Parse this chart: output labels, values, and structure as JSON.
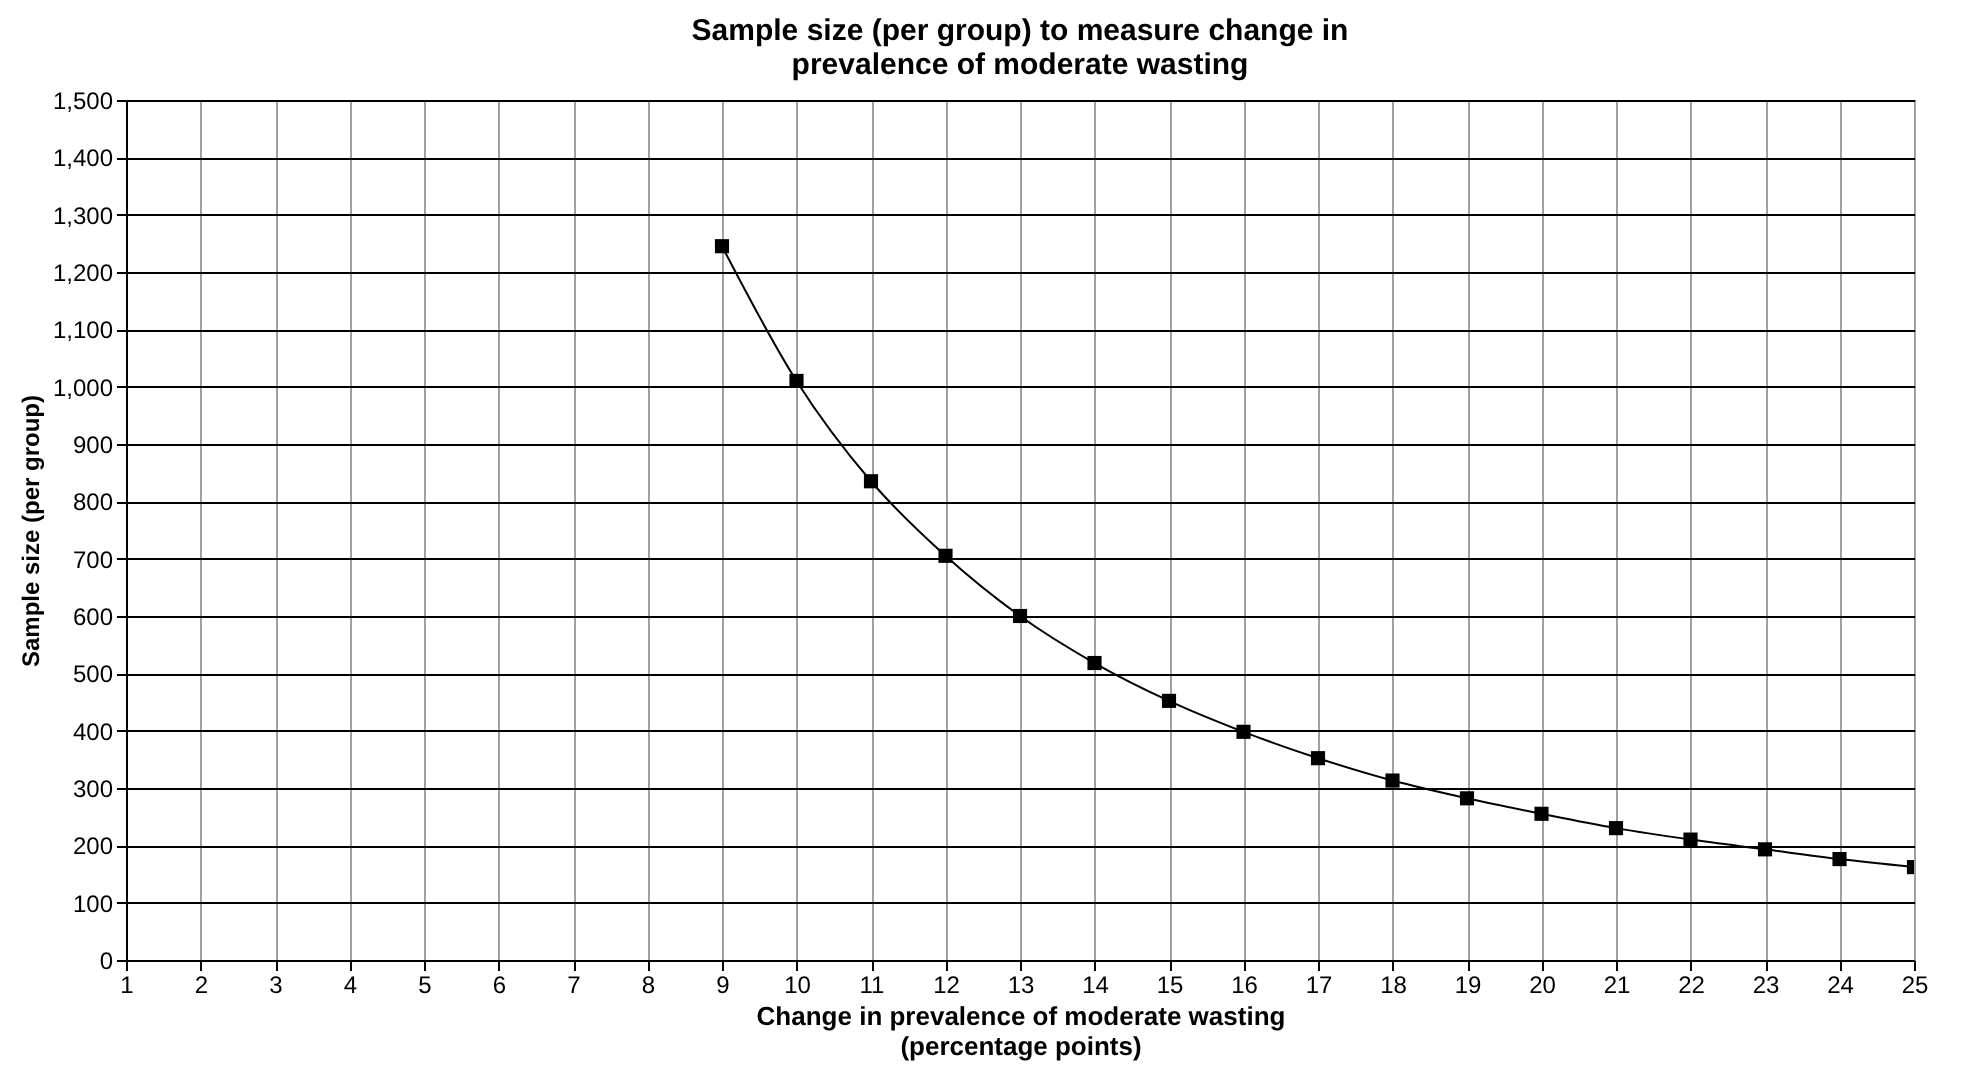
{
  "chart_data": {
    "type": "line",
    "title": [
      "Sample size (per group) to measure change in",
      "prevalence of moderate wasting"
    ],
    "xlabel": [
      "Change in prevalence of moderate wasting",
      "(percentage points)"
    ],
    "ylabel": "Sample size (per group)",
    "x": [
      9,
      10,
      11,
      12,
      13,
      14,
      15,
      16,
      17,
      18,
      19,
      20,
      21,
      22,
      23,
      24,
      25
    ],
    "series": [
      {
        "color": "#000000",
        "values": [
          1245,
          1010,
          835,
          705,
          600,
          518,
          452,
          398,
          352,
          313,
          282,
          255,
          230,
          210,
          193,
          176,
          162
        ]
      }
    ],
    "xlim": [
      1,
      25
    ],
    "xticks": [
      1,
      2,
      3,
      4,
      5,
      6,
      7,
      8,
      9,
      10,
      11,
      12,
      13,
      14,
      15,
      16,
      17,
      18,
      19,
      20,
      21,
      22,
      23,
      24,
      25
    ],
    "ylim": [
      0,
      1500
    ],
    "yticks": [
      0,
      100,
      200,
      300,
      400,
      500,
      600,
      700,
      800,
      900,
      {
        "value": 1000,
        "label": "1,000"
      },
      {
        "value": 1100,
        "label": "1,100"
      },
      {
        "value": 1200,
        "label": "1,200"
      },
      {
        "value": 1300,
        "label": "1,300"
      },
      {
        "value": 1400,
        "label": "1,400"
      },
      {
        "value": 1500,
        "label": "1,500"
      }
    ],
    "grid": true,
    "marker": "square",
    "line_style": "solid"
  }
}
